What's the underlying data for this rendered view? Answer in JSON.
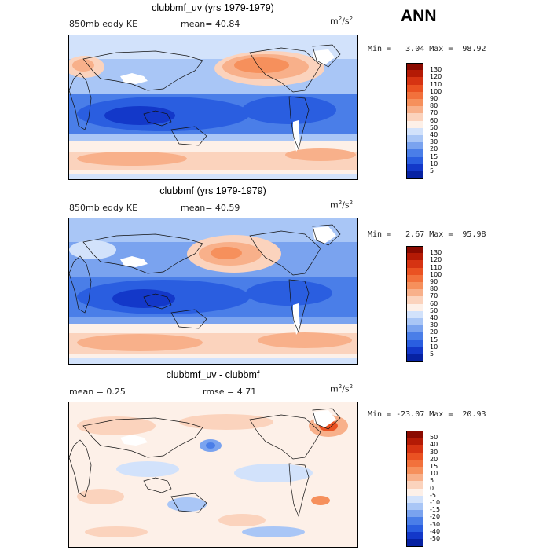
{
  "header": {
    "season": "ANN"
  },
  "panels": [
    {
      "title": "clubbmf_uv (yrs 1979-1979)",
      "left_label": "850mb eddy KE",
      "mid_label": "mean=  40.84",
      "units_base": "m",
      "units_sup1": "2",
      "units_mid": "/s",
      "units_sup2": "2",
      "minmax": "Min =   3.04 Max =  98.92",
      "colorbar": {
        "labels": [
          "130",
          "120",
          "110",
          "100",
          "90",
          "80",
          "70",
          "60",
          "50",
          "40",
          "30",
          "20",
          "15",
          "10",
          "5"
        ],
        "colors": [
          "#8a0a00",
          "#b41a05",
          "#d63312",
          "#ea5222",
          "#f2713c",
          "#f6905c",
          "#f8b08a",
          "#fbd3bd",
          "#fdf0e8",
          "#d2e2fb",
          "#a9c6f6",
          "#7aa3ef",
          "#4a7ee8",
          "#2a5ee0",
          "#1338c9",
          "#0722a2"
        ]
      }
    },
    {
      "title": "clubbmf (yrs 1979-1979)",
      "left_label": "850mb eddy KE",
      "mid_label": "mean=  40.59",
      "units_base": "m",
      "units_sup1": "2",
      "units_mid": "/s",
      "units_sup2": "2",
      "minmax": "Min =   2.67 Max =  95.98",
      "colorbar": {
        "labels": [
          "130",
          "120",
          "110",
          "100",
          "90",
          "80",
          "70",
          "60",
          "50",
          "40",
          "30",
          "20",
          "15",
          "10",
          "5"
        ],
        "colors": [
          "#8a0a00",
          "#b41a05",
          "#d63312",
          "#ea5222",
          "#f2713c",
          "#f6905c",
          "#f8b08a",
          "#fbd3bd",
          "#fdf0e8",
          "#d2e2fb",
          "#a9c6f6",
          "#7aa3ef",
          "#4a7ee8",
          "#2a5ee0",
          "#1338c9",
          "#0722a2"
        ]
      }
    },
    {
      "title": "clubbmf_uv - clubbmf",
      "left_label": "mean =   0.25",
      "mid_label": "rmse =   4.71",
      "units_base": "m",
      "units_sup1": "2",
      "units_mid": "/s",
      "units_sup2": "2",
      "minmax": "Min = -23.07 Max =  20.93",
      "colorbar": {
        "labels": [
          "50",
          "40",
          "30",
          "20",
          "15",
          "10",
          "5",
          "0",
          "-5",
          "-10",
          "-15",
          "-20",
          "-30",
          "-40",
          "-50"
        ],
        "colors": [
          "#8a0a00",
          "#b41a05",
          "#d63312",
          "#ea5222",
          "#f2713c",
          "#f6905c",
          "#f8b08a",
          "#fbd3bd",
          "#fdf0e8",
          "#d2e2fb",
          "#a9c6f6",
          "#7aa3ef",
          "#4a7ee8",
          "#2a5ee0",
          "#1338c9",
          "#0722a2"
        ]
      }
    }
  ]
}
